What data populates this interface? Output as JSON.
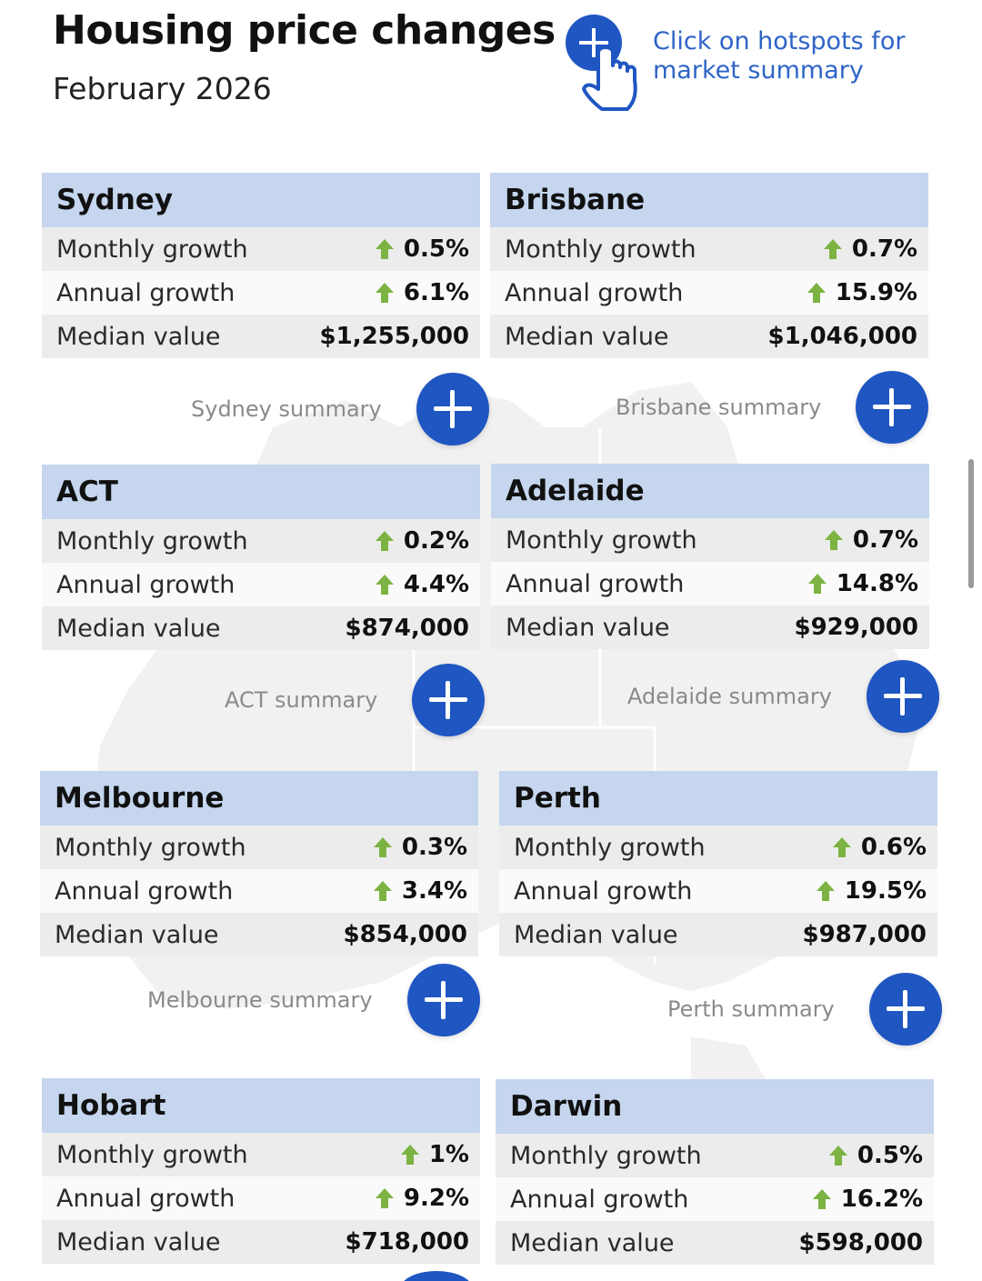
{
  "header": {
    "title": "Housing price changes",
    "subtitle": "February 2026",
    "hint": "Click on hotspots for market summary"
  },
  "icons": {
    "hint_icon": "hand-pointer-plus-icon",
    "increase_icon": "green-up-arrow-icon",
    "expand_icon": "plus-icon"
  },
  "colors": {
    "accent_blue": "#1f56c2",
    "header_fill": "#c5d6ee",
    "increase_green": "#7cb342",
    "hint_text": "#2e64c7"
  },
  "row_labels": {
    "monthly": "Monthly growth",
    "annual": "Annual growth",
    "median": "Median value"
  },
  "cities": [
    {
      "name": "Sydney",
      "monthly": "0.5%",
      "annual": "6.1%",
      "median": "$1,255,000",
      "summary": "Sydney summary"
    },
    {
      "name": "Brisbane",
      "monthly": "0.7%",
      "annual": "15.9%",
      "median": "$1,046,000",
      "summary": "Brisbane summary"
    },
    {
      "name": "ACT",
      "monthly": "0.2%",
      "annual": "4.4%",
      "median": "$874,000",
      "summary": "ACT summary"
    },
    {
      "name": "Adelaide",
      "monthly": "0.7%",
      "annual": "14.8%",
      "median": "$929,000",
      "summary": "Adelaide summary"
    },
    {
      "name": "Melbourne",
      "monthly": "0.3%",
      "annual": "3.4%",
      "median": "$854,000",
      "summary": "Melbourne summary"
    },
    {
      "name": "Perth",
      "monthly": "0.6%",
      "annual": "19.5%",
      "median": "$987,000",
      "summary": "Perth summary"
    },
    {
      "name": "Hobart",
      "monthly": "1%",
      "annual": "9.2%",
      "median": "$718,000"
    },
    {
      "name": "Darwin",
      "monthly": "0.5%",
      "annual": "16.2%",
      "median": "$598,000"
    }
  ]
}
